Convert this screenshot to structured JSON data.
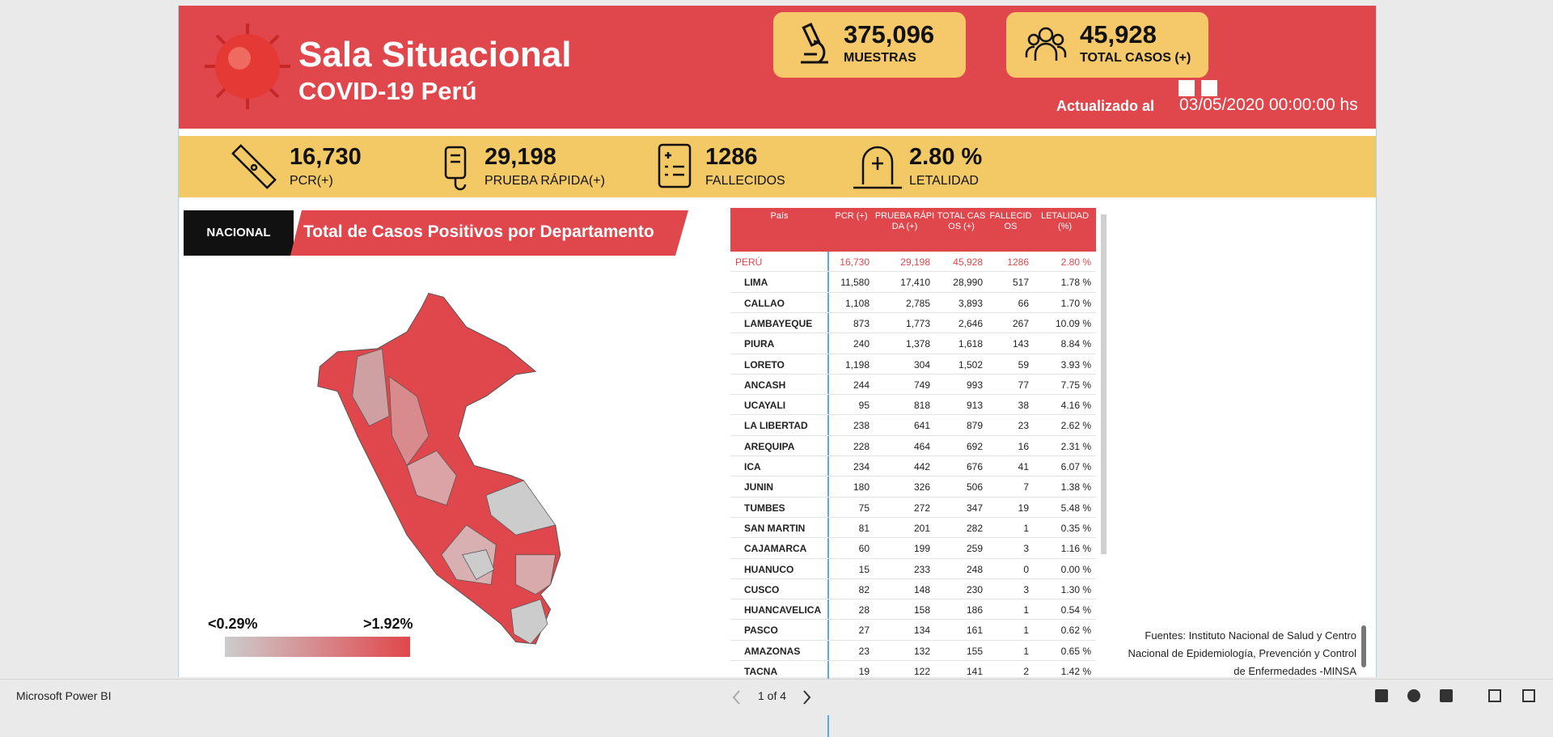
{
  "header": {
    "title": "Sala Situacional",
    "subtitle": "COVID-19 Perú",
    "updated_label": "Actualizado al",
    "updated_date": "03/05/2020 00:00:00 hs"
  },
  "summary": [
    {
      "value": "375,096",
      "label": "MUESTRAS"
    },
    {
      "value": "45,928",
      "label": "TOTAL CASOS (+)"
    }
  ],
  "kpis": [
    {
      "value": "16,730",
      "label": "PCR(+)"
    },
    {
      "value": "29,198",
      "label": "PRUEBA RÁPIDA(+)"
    },
    {
      "value": "1286",
      "label": "FALLECIDOS"
    },
    {
      "value": "2.80 %",
      "label": "LETALIDAD"
    }
  ],
  "section": {
    "tag": "NACIONAL",
    "title": "Total de Casos Positivos por Departamento"
  },
  "legend": {
    "min": "<0.29%",
    "max": ">1.92%"
  },
  "table": {
    "columns": [
      "País",
      "PCR (+)",
      "PRUEBA RÁPIDA (+)",
      "TOTAL CASOS (+)",
      "FALLECIDOS",
      "LETALIDAD (%)"
    ],
    "rows": [
      [
        "PERÚ",
        "16,730",
        "29,198",
        "45,928",
        "1286",
        "2.80 %"
      ],
      [
        "LIMA",
        "11,580",
        "17,410",
        "28,990",
        "517",
        "1.78 %"
      ],
      [
        "CALLAO",
        "1,108",
        "2,785",
        "3,893",
        "66",
        "1.70 %"
      ],
      [
        "LAMBAYEQUE",
        "873",
        "1,773",
        "2,646",
        "267",
        "10.09 %"
      ],
      [
        "PIURA",
        "240",
        "1,378",
        "1,618",
        "143",
        "8.84 %"
      ],
      [
        "LORETO",
        "1,198",
        "304",
        "1,502",
        "59",
        "3.93 %"
      ],
      [
        "ANCASH",
        "244",
        "749",
        "993",
        "77",
        "7.75 %"
      ],
      [
        "UCAYALI",
        "95",
        "818",
        "913",
        "38",
        "4.16 %"
      ],
      [
        "LA LIBERTAD",
        "238",
        "641",
        "879",
        "23",
        "2.62 %"
      ],
      [
        "AREQUIPA",
        "228",
        "464",
        "692",
        "16",
        "2.31 %"
      ],
      [
        "ICA",
        "234",
        "442",
        "676",
        "41",
        "6.07 %"
      ],
      [
        "JUNIN",
        "180",
        "326",
        "506",
        "7",
        "1.38 %"
      ],
      [
        "TUMBES",
        "75",
        "272",
        "347",
        "19",
        "5.48 %"
      ],
      [
        "SAN MARTIN",
        "81",
        "201",
        "282",
        "1",
        "0.35 %"
      ],
      [
        "CAJAMARCA",
        "60",
        "199",
        "259",
        "3",
        "1.16 %"
      ],
      [
        "HUANUCO",
        "15",
        "233",
        "248",
        "0",
        "0.00 %"
      ],
      [
        "CUSCO",
        "82",
        "148",
        "230",
        "3",
        "1.30 %"
      ],
      [
        "HUANCAVELICA",
        "28",
        "158",
        "186",
        "1",
        "0.54 %"
      ],
      [
        "PASCO",
        "27",
        "134",
        "161",
        "1",
        "0.62 %"
      ],
      [
        "AMAZONAS",
        "23",
        "132",
        "155",
        "1",
        "0.65 %"
      ],
      [
        "TACNA",
        "19",
        "122",
        "141",
        "2",
        "1.42 %"
      ]
    ]
  },
  "sources": [
    "Fuentes: Instituto Nacional de Salud y Centro",
    "Nacional de Epidemiología, Prevención y Control",
    "de Enfermedades -MINSA"
  ],
  "footer": {
    "brand": "Microsoft Power BI",
    "page": "1 of 4"
  }
}
